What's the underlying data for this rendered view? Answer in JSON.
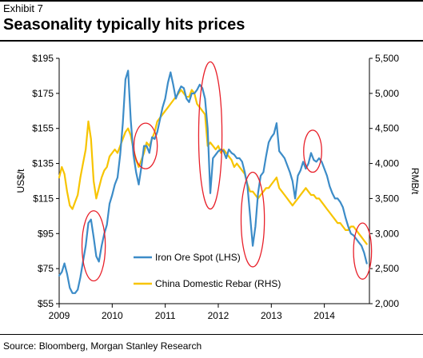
{
  "header": {
    "exhibit": "Exhibit 7",
    "title": "Seasonality typically hits prices"
  },
  "footer": {
    "source": "Source: Bloomberg, Morgan Stanley Research"
  },
  "colors": {
    "iron_ore": "#3c8cc8",
    "rebar": "#f7c400",
    "highlight_circle": "#e8202a"
  },
  "chart_data": {
    "type": "line",
    "title": "Seasonality typically hits prices",
    "ylabel": "US$/t",
    "y2label": "RMB/t",
    "xlim": [
      2009.0,
      2014.85
    ],
    "ylim": [
      55,
      195
    ],
    "y2lim": [
      2000,
      5500
    ],
    "x_ticks": [
      "2009",
      "2010",
      "2011",
      "2012",
      "2013",
      "2014"
    ],
    "y_ticks": [
      "$55",
      "$75",
      "$95",
      "$115",
      "$135",
      "$155",
      "$175",
      "$195"
    ],
    "y2_ticks": [
      "2,000",
      "2,500",
      "3,000",
      "3,500",
      "4,000",
      "4,500",
      "5,000",
      "5,500"
    ],
    "legend_position": "bottom-center",
    "highlighted_periods": [
      {
        "x": 2009.65,
        "y": 88,
        "rx": 0.22,
        "ry": 20
      },
      {
        "x": 2010.63,
        "y": 145,
        "rx": 0.22,
        "ry": 13
      },
      {
        "x": 2011.85,
        "y": 151,
        "rx": 0.22,
        "ry": 42
      },
      {
        "x": 2012.65,
        "y": 103,
        "rx": 0.22,
        "ry": 27
      },
      {
        "x": 2013.78,
        "y": 142,
        "rx": 0.17,
        "ry": 12
      },
      {
        "x": 2014.72,
        "y": 85,
        "rx": 0.17,
        "ry": 16
      }
    ],
    "series": [
      {
        "name": "Iron Ore Spot (LHS)",
        "axis": "left",
        "x": [
          2009.0,
          2009.05,
          2009.1,
          2009.15,
          2009.2,
          2009.25,
          2009.3,
          2009.35,
          2009.4,
          2009.45,
          2009.5,
          2009.55,
          2009.6,
          2009.65,
          2009.7,
          2009.75,
          2009.8,
          2009.85,
          2009.9,
          2009.95,
          2010.0,
          2010.05,
          2010.1,
          2010.15,
          2010.2,
          2010.25,
          2010.3,
          2010.35,
          2010.4,
          2010.45,
          2010.5,
          2010.55,
          2010.6,
          2010.65,
          2010.7,
          2010.75,
          2010.8,
          2010.85,
          2010.9,
          2010.95,
          2011.0,
          2011.05,
          2011.1,
          2011.15,
          2011.2,
          2011.25,
          2011.3,
          2011.35,
          2011.4,
          2011.45,
          2011.5,
          2011.55,
          2011.6,
          2011.65,
          2011.7,
          2011.75,
          2011.8,
          2011.85,
          2011.9,
          2011.95,
          2012.0,
          2012.05,
          2012.1,
          2012.15,
          2012.2,
          2012.25,
          2012.3,
          2012.35,
          2012.4,
          2012.45,
          2012.5,
          2012.55,
          2012.6,
          2012.65,
          2012.7,
          2012.75,
          2012.8,
          2012.85,
          2012.9,
          2012.95,
          2013.0,
          2013.05,
          2013.1,
          2013.15,
          2013.2,
          2013.25,
          2013.3,
          2013.35,
          2013.4,
          2013.45,
          2013.5,
          2013.55,
          2013.6,
          2013.65,
          2013.7,
          2013.75,
          2013.8,
          2013.85,
          2013.9,
          2013.95,
          2014.0,
          2014.05,
          2014.1,
          2014.15,
          2014.2,
          2014.25,
          2014.3,
          2014.35,
          2014.4,
          2014.45,
          2014.5,
          2014.55,
          2014.6,
          2014.65,
          2014.7,
          2014.75,
          2014.8
        ],
        "values": [
          71,
          73,
          78,
          72,
          64,
          61,
          61,
          63,
          70,
          79,
          88,
          101,
          103,
          93,
          82,
          79,
          88,
          95,
          100,
          112,
          117,
          123,
          127,
          140,
          158,
          183,
          188,
          160,
          140,
          130,
          123,
          133,
          145,
          145,
          141,
          150,
          149,
          153,
          160,
          167,
          172,
          181,
          187,
          180,
          172,
          176,
          179,
          178,
          172,
          170,
          175,
          175,
          177,
          180,
          178,
          172,
          155,
          118,
          138,
          140,
          142,
          143,
          142,
          138,
          143,
          141,
          140,
          138,
          138,
          136,
          130,
          122,
          105,
          88,
          99,
          118,
          128,
          130,
          139,
          147,
          150,
          152,
          158,
          142,
          140,
          138,
          134,
          130,
          125,
          115,
          128,
          131,
          136,
          132,
          135,
          141,
          137,
          136,
          138,
          136,
          132,
          128,
          122,
          118,
          115,
          115,
          113,
          110,
          104,
          99,
          95,
          94,
          92,
          90,
          88,
          84,
          78
        ]
      },
      {
        "name": "China Domestic Rebar (RHS)",
        "axis": "right",
        "x": [
          2009.0,
          2009.05,
          2009.1,
          2009.15,
          2009.2,
          2009.25,
          2009.3,
          2009.35,
          2009.4,
          2009.45,
          2009.5,
          2009.55,
          2009.6,
          2009.65,
          2009.7,
          2009.75,
          2009.8,
          2009.85,
          2009.9,
          2009.95,
          2010.0,
          2010.05,
          2010.1,
          2010.15,
          2010.2,
          2010.25,
          2010.3,
          2010.35,
          2010.4,
          2010.45,
          2010.5,
          2010.55,
          2010.6,
          2010.65,
          2010.7,
          2010.75,
          2010.8,
          2010.85,
          2010.9,
          2010.95,
          2011.0,
          2011.05,
          2011.1,
          2011.15,
          2011.2,
          2011.25,
          2011.3,
          2011.35,
          2011.4,
          2011.45,
          2011.5,
          2011.55,
          2011.6,
          2011.65,
          2011.7,
          2011.75,
          2011.8,
          2011.85,
          2011.9,
          2011.95,
          2012.0,
          2012.05,
          2012.1,
          2012.15,
          2012.2,
          2012.25,
          2012.3,
          2012.35,
          2012.4,
          2012.45,
          2012.5,
          2012.55,
          2012.6,
          2012.65,
          2012.7,
          2012.75,
          2012.8,
          2012.85,
          2012.9,
          2012.95,
          2013.0,
          2013.05,
          2013.1,
          2013.15,
          2013.2,
          2013.25,
          2013.3,
          2013.35,
          2013.4,
          2013.45,
          2013.5,
          2013.55,
          2013.6,
          2013.65,
          2013.7,
          2013.75,
          2013.8,
          2013.85,
          2013.9,
          2013.95,
          2014.0,
          2014.05,
          2014.1,
          2014.15,
          2014.2,
          2014.25,
          2014.3,
          2014.35,
          2014.4,
          2014.45,
          2014.5,
          2014.55,
          2014.6,
          2014.65,
          2014.7,
          2014.75,
          2014.8
        ],
        "values": [
          3800,
          3950,
          3850,
          3600,
          3400,
          3350,
          3450,
          3550,
          3800,
          4000,
          4200,
          4600,
          4350,
          3750,
          3500,
          3650,
          3800,
          3900,
          3950,
          4100,
          4150,
          4200,
          4150,
          4250,
          4350,
          4450,
          4500,
          4400,
          4200,
          4050,
          3950,
          4050,
          4150,
          4300,
          4250,
          4350,
          4450,
          4600,
          4650,
          4700,
          4750,
          4800,
          4850,
          4900,
          4950,
          5000,
          5050,
          5000,
          4950,
          4950,
          5050,
          5000,
          4850,
          4800,
          4750,
          4700,
          4250,
          4300,
          4250,
          4200,
          4250,
          4150,
          4200,
          4150,
          4100,
          4050,
          3950,
          4000,
          3950,
          3900,
          3850,
          3700,
          3600,
          3600,
          3550,
          3500,
          3550,
          3600,
          3650,
          3650,
          3700,
          3750,
          3800,
          3650,
          3600,
          3550,
          3500,
          3450,
          3400,
          3450,
          3500,
          3550,
          3600,
          3650,
          3600,
          3550,
          3550,
          3500,
          3500,
          3450,
          3400,
          3350,
          3300,
          3250,
          3200,
          3150,
          3150,
          3100,
          3050,
          3050,
          3100,
          3100,
          3050,
          3000,
          2950,
          2900,
          2850
        ]
      }
    ]
  }
}
